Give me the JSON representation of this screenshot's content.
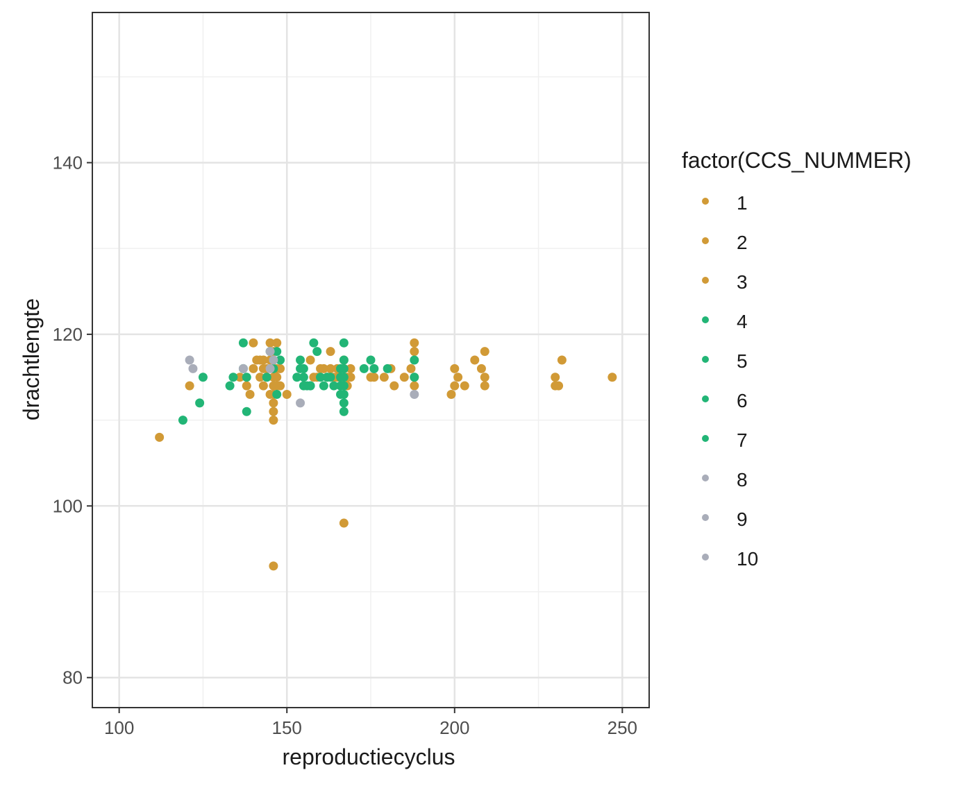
{
  "chart_data": {
    "type": "scatter",
    "title": "",
    "xlabel": "reproductiecyclus",
    "ylabel": "drachtlengte",
    "xlim": [
      92,
      258
    ],
    "ylim": [
      76.5,
      157.5
    ],
    "x_ticks": [
      100,
      150,
      200,
      250
    ],
    "y_ticks": [
      80,
      100,
      120,
      140
    ],
    "x_tick_labels": [
      "100",
      "150",
      "200",
      "250"
    ],
    "y_tick_labels": [
      "80",
      "100",
      "120",
      "140"
    ],
    "grid": true,
    "legend": {
      "title": "factor(CCS_NUMMER)",
      "position": "right"
    },
    "colors": {
      "1": "#D19A36",
      "2": "#D19A36",
      "3": "#D19A36",
      "4": "#22B576",
      "5": "#22B576",
      "6": "#22B576",
      "7": "#22B576",
      "8": "#A9ADB9",
      "9": "#A9ADB9",
      "10": "#A9ADB9"
    },
    "series": [
      {
        "name": "1",
        "points": [
          [
            112,
            108
          ],
          [
            121,
            114
          ],
          [
            136,
            115
          ],
          [
            138,
            114
          ],
          [
            139,
            113
          ],
          [
            140,
            116
          ],
          [
            140,
            119
          ],
          [
            141,
            117
          ],
          [
            142,
            115
          ],
          [
            142,
            117
          ],
          [
            143,
            116
          ],
          [
            143,
            114
          ],
          [
            144,
            115
          ],
          [
            145,
            117
          ],
          [
            145,
            113
          ],
          [
            145,
            119
          ],
          [
            146,
            118
          ],
          [
            146,
            116
          ],
          [
            146,
            115
          ],
          [
            146,
            114
          ],
          [
            146,
            113
          ],
          [
            146,
            112
          ],
          [
            146,
            111
          ],
          [
            146,
            110
          ],
          [
            146,
            93
          ],
          [
            147,
            119
          ],
          [
            147,
            116
          ],
          [
            147,
            115
          ],
          [
            147,
            114
          ],
          [
            148,
            114
          ],
          [
            150,
            113
          ],
          [
            157,
            117
          ],
          [
            158,
            115
          ],
          [
            159,
            115
          ],
          [
            160,
            116
          ],
          [
            161,
            116
          ],
          [
            162,
            115
          ],
          [
            163,
            116
          ],
          [
            163,
            118
          ],
          [
            164,
            115
          ],
          [
            165,
            116
          ],
          [
            166,
            115
          ],
          [
            167,
            116
          ],
          [
            167,
            98
          ],
          [
            168,
            115
          ],
          [
            168,
            114
          ],
          [
            169,
            116
          ],
          [
            169,
            115
          ],
          [
            175,
            115
          ],
          [
            176,
            115
          ],
          [
            179,
            115
          ],
          [
            181,
            116
          ],
          [
            182,
            114
          ],
          [
            185,
            115
          ],
          [
            187,
            116
          ],
          [
            188,
            119
          ],
          [
            188,
            118
          ],
          [
            188,
            115
          ],
          [
            188,
            114
          ],
          [
            199,
            113
          ],
          [
            200,
            114
          ],
          [
            200,
            116
          ],
          [
            201,
            115
          ],
          [
            203,
            114
          ],
          [
            206,
            117
          ],
          [
            208,
            116
          ],
          [
            209,
            118
          ],
          [
            209,
            115
          ],
          [
            209,
            114
          ],
          [
            230,
            115
          ],
          [
            230,
            114
          ],
          [
            231,
            114
          ],
          [
            232,
            117
          ],
          [
            247,
            115
          ]
        ]
      },
      {
        "name": "2",
        "points": [
          [
            144,
            116
          ],
          [
            148,
            116
          ],
          [
            165,
            115
          ]
        ]
      },
      {
        "name": "3",
        "points": [
          [
            143,
            117
          ],
          [
            146,
            117
          ],
          [
            167,
            117
          ]
        ]
      },
      {
        "name": "4",
        "points": [
          [
            119,
            110
          ],
          [
            124,
            112
          ],
          [
            125,
            115
          ],
          [
            133,
            114
          ],
          [
            134,
            115
          ],
          [
            137,
            119
          ],
          [
            137,
            116
          ],
          [
            138,
            115
          ],
          [
            138,
            111
          ],
          [
            145,
            118
          ],
          [
            146,
            116
          ],
          [
            147,
            118
          ],
          [
            147,
            113
          ],
          [
            153,
            115
          ],
          [
            154,
            117
          ],
          [
            154,
            116
          ],
          [
            155,
            115
          ],
          [
            155,
            114
          ],
          [
            156,
            114
          ],
          [
            157,
            114
          ],
          [
            158,
            119
          ],
          [
            159,
            118
          ],
          [
            160,
            115
          ],
          [
            161,
            114
          ],
          [
            162,
            115
          ],
          [
            163,
            115
          ],
          [
            164,
            114
          ],
          [
            166,
            116
          ],
          [
            166,
            115
          ],
          [
            166,
            114
          ],
          [
            167,
            119
          ],
          [
            167,
            117
          ],
          [
            167,
            116
          ],
          [
            167,
            115
          ],
          [
            167,
            114
          ],
          [
            167,
            113
          ],
          [
            167,
            112
          ],
          [
            167,
            111
          ],
          [
            173,
            116
          ],
          [
            175,
            117
          ],
          [
            176,
            116
          ],
          [
            180,
            116
          ],
          [
            188,
            117
          ]
        ]
      },
      {
        "name": "5",
        "points": [
          [
            144,
            115
          ],
          [
            157,
            114
          ]
        ]
      },
      {
        "name": "6",
        "points": [
          [
            148,
            117
          ],
          [
            166,
            113
          ]
        ]
      },
      {
        "name": "7",
        "points": [
          [
            155,
            116
          ],
          [
            188,
            115
          ]
        ]
      },
      {
        "name": "8",
        "points": [
          [
            121,
            117
          ],
          [
            122,
            116
          ],
          [
            137,
            116
          ],
          [
            145,
            118
          ],
          [
            154,
            112
          ],
          [
            188,
            113
          ]
        ]
      },
      {
        "name": "9",
        "points": [
          [
            146,
            117
          ]
        ]
      },
      {
        "name": "10",
        "points": [
          [
            145,
            116
          ]
        ]
      }
    ]
  }
}
